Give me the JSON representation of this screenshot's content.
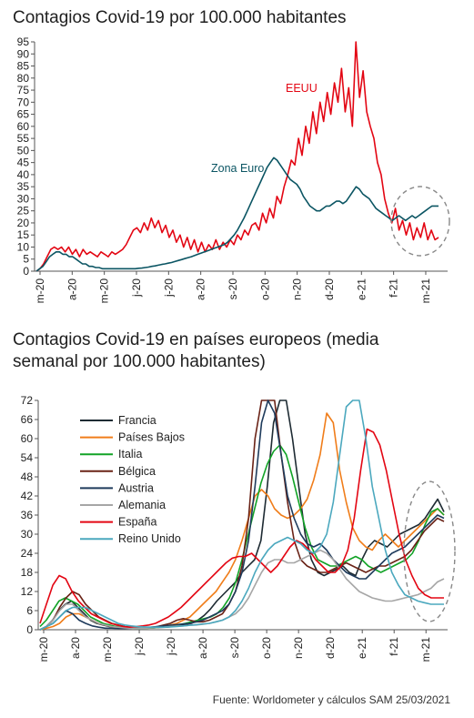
{
  "chart_data": [
    {
      "type": "line",
      "title": "Contagios Covid-19 por 100.000 habitantes",
      "ylim": [
        0,
        95
      ],
      "yticks": [
        0,
        5,
        10,
        15,
        20,
        25,
        30,
        35,
        40,
        45,
        50,
        55,
        60,
        65,
        70,
        75,
        80,
        85,
        90,
        95
      ],
      "xticks": [
        "m-20",
        "a-20",
        "m-20",
        "j-20",
        "j-20",
        "a-20",
        "s-20",
        "o-20",
        "n-20",
        "d-20",
        "e-21",
        "f-21",
        "m-21"
      ],
      "series": [
        {
          "name": "EEUU",
          "color": "#e30613",
          "values": [
            0,
            1,
            3,
            6,
            9,
            10,
            9,
            10,
            8,
            10,
            7,
            9,
            6,
            9,
            7,
            8,
            7,
            6,
            8,
            7,
            6,
            8,
            7,
            8,
            9,
            11,
            14,
            17,
            18,
            16,
            20,
            17,
            22,
            18,
            21,
            16,
            19,
            14,
            17,
            12,
            15,
            10,
            14,
            9,
            13,
            8,
            12,
            8,
            11,
            9,
            13,
            9,
            12,
            10,
            13,
            11,
            15,
            13,
            17,
            15,
            19,
            20,
            17,
            24,
            20,
            26,
            22,
            31,
            28,
            35,
            40,
            46,
            44,
            55,
            48,
            60,
            53,
            66,
            57,
            70,
            62,
            74,
            65,
            78,
            70,
            84,
            66,
            76,
            60,
            95,
            72,
            83,
            66,
            60,
            55,
            45,
            40,
            30,
            24,
            20,
            26,
            17,
            21,
            15,
            20,
            13,
            18,
            14,
            20,
            13,
            17,
            13,
            14
          ]
        },
        {
          "name": "Zona Euro",
          "color": "#0b5563",
          "values": [
            0,
            1,
            2,
            4,
            6,
            7,
            8,
            8,
            7,
            7,
            6,
            6,
            5,
            4,
            3,
            3,
            2,
            2,
            1.5,
            1.5,
            1,
            1,
            1,
            1,
            1,
            1,
            1,
            1,
            1,
            1,
            1,
            1.2,
            1.3,
            1.5,
            1.7,
            2,
            2.2,
            2.5,
            2.8,
            3,
            3.3,
            3.6,
            4,
            4.4,
            4.8,
            5.2,
            5.6,
            6,
            6.5,
            7,
            7.5,
            8,
            8.5,
            9,
            9.5,
            10,
            10.5,
            11,
            12,
            13.5,
            15,
            17,
            19.5,
            22,
            25,
            28,
            31,
            34,
            37,
            40,
            43,
            45,
            47,
            46,
            44,
            42,
            40,
            38,
            37,
            36,
            34,
            31,
            29,
            27,
            26,
            25,
            25,
            26,
            27,
            27,
            28,
            29,
            29,
            28,
            29,
            31,
            33,
            35,
            34,
            32,
            31,
            30,
            28,
            26,
            25,
            24,
            23,
            22,
            21,
            22,
            23,
            22,
            21,
            22,
            23,
            22,
            23,
            24,
            25,
            26,
            27,
            27,
            27
          ]
        }
      ],
      "annotations": [
        "EEUU",
        "Zona Euro"
      ]
    },
    {
      "type": "line",
      "title": "Contagios Covid-19 en países europeos (media semanal por 100.000 habitantes)",
      "ylim": [
        0,
        72
      ],
      "yticks": [
        0,
        6,
        12,
        18,
        24,
        30,
        36,
        42,
        48,
        54,
        60,
        66,
        72
      ],
      "xticks": [
        "m-20",
        "a-20",
        "m-20",
        "j-20",
        "j-20",
        "a-20",
        "s-20",
        "o-20",
        "n-20",
        "d-20",
        "e-21",
        "f-21",
        "m-21"
      ],
      "series": [
        {
          "name": "Francia",
          "color": "#1e2b33",
          "values": [
            0,
            1,
            3,
            6,
            8,
            9,
            7,
            5,
            3,
            2,
            1.5,
            1,
            1,
            1,
            0.8,
            0.7,
            0.6,
            0.6,
            0.6,
            0.7,
            0.8,
            1,
            1.3,
            1.6,
            2,
            3,
            4.5,
            6.5,
            9,
            11,
            13,
            15,
            18,
            20,
            22,
            28,
            45,
            65,
            72,
            72,
            60,
            45,
            30,
            22,
            18,
            17,
            18,
            19,
            20,
            18,
            17,
            22,
            26,
            28,
            27,
            26,
            28,
            30,
            31,
            32,
            33,
            35,
            38,
            41,
            37
          ]
        },
        {
          "name": "Países Bajos",
          "color": "#f07d1a",
          "values": [
            0,
            0.5,
            1,
            2,
            4,
            5,
            5,
            4,
            3,
            2,
            1.5,
            1,
            0.8,
            0.7,
            0.6,
            0.6,
            0.6,
            0.7,
            0.8,
            1,
            1.5,
            2,
            3,
            4,
            6,
            8,
            10,
            12,
            15,
            18,
            22,
            28,
            35,
            42,
            44,
            42,
            38,
            36,
            35,
            36,
            38,
            41,
            47,
            55,
            68,
            65,
            50,
            40,
            32,
            28,
            26,
            25,
            28,
            30,
            28,
            26,
            28,
            30,
            32,
            34,
            36,
            38,
            36
          ]
        },
        {
          "name": "Italia",
          "color": "#12a327",
          "values": [
            1,
            3,
            6,
            9,
            10,
            9,
            8,
            6,
            4,
            3,
            2,
            1.5,
            1,
            0.8,
            0.6,
            0.5,
            0.5,
            0.5,
            0.6,
            0.8,
            1,
            1.3,
            1.6,
            2,
            2.5,
            3,
            3.5,
            4,
            5,
            7,
            10,
            15,
            22,
            30,
            38,
            46,
            52,
            56,
            58,
            55,
            48,
            40,
            32,
            26,
            22,
            21,
            20,
            20,
            21,
            22,
            23,
            22,
            20,
            19,
            18,
            19,
            20,
            21,
            22,
            24,
            28,
            33,
            37,
            38,
            36
          ]
        },
        {
          "name": "Bélgica",
          "color": "#6a2317",
          "values": [
            0,
            1,
            3,
            7,
            10,
            12,
            11,
            8,
            6,
            4,
            3,
            2,
            1.5,
            1,
            0.8,
            0.7,
            0.6,
            0.7,
            1,
            1.5,
            2,
            3,
            3.5,
            3,
            2.5,
            2.5,
            3,
            4,
            5,
            8,
            12,
            20,
            35,
            60,
            72,
            72,
            72,
            55,
            40,
            28,
            22,
            20,
            19,
            18,
            18,
            19,
            20,
            21,
            20,
            19,
            18,
            19,
            20,
            20,
            21,
            22,
            23,
            25,
            28,
            31,
            33,
            35,
            34
          ]
        },
        {
          "name": "Austria",
          "color": "#1f3b5c",
          "values": [
            0,
            1,
            2,
            4,
            6,
            5,
            3,
            2,
            1.2,
            0.8,
            0.5,
            0.5,
            0.4,
            0.4,
            0.5,
            0.6,
            0.7,
            0.8,
            1,
            1.2,
            1.4,
            1.6,
            1.8,
            2,
            2.5,
            3,
            4,
            5,
            6,
            8,
            12,
            18,
            28,
            45,
            65,
            72,
            68,
            55,
            42,
            35,
            30,
            27,
            26,
            27,
            25,
            22,
            20,
            18,
            17,
            16,
            16,
            18,
            20,
            22,
            24,
            25,
            26,
            28,
            30,
            32,
            34,
            36,
            35
          ]
        },
        {
          "name": "Alemania",
          "color": "#a6a6a6",
          "values": [
            0,
            1,
            3,
            6,
            8,
            8,
            6,
            4,
            3,
            2,
            1.5,
            1,
            0.8,
            0.6,
            0.5,
            0.5,
            0.5,
            0.6,
            0.7,
            0.8,
            1,
            1.1,
            1.2,
            1.4,
            1.5,
            1.7,
            2,
            2.5,
            3,
            4,
            5,
            7,
            10,
            14,
            18,
            21,
            22,
            22,
            21,
            21,
            22,
            23,
            24,
            25,
            24,
            22,
            19,
            16,
            14,
            12,
            11,
            10,
            9.5,
            9,
            9,
            9.5,
            10,
            10.5,
            11,
            12,
            13,
            15,
            16
          ]
        },
        {
          "name": "España",
          "color": "#e30613",
          "values": [
            2,
            8,
            14,
            17,
            16,
            12,
            9,
            7,
            5,
            4,
            3,
            2,
            1.5,
            1,
            0.8,
            1,
            1.2,
            1.5,
            2,
            3,
            4,
            5.5,
            7,
            9,
            11,
            13,
            15,
            17,
            19,
            21,
            22.5,
            23,
            23,
            24,
            22,
            20,
            18,
            20,
            23,
            26,
            28,
            27,
            25,
            22,
            20,
            18,
            18,
            20,
            25,
            35,
            50,
            63,
            62,
            58,
            50,
            40,
            30,
            22,
            17,
            13,
            11,
            10,
            10,
            10
          ]
        },
        {
          "name": "Reino Unido",
          "color": "#4ba8be",
          "values": [
            0,
            1,
            2,
            4,
            6,
            7,
            7,
            7,
            6,
            5,
            4,
            3,
            2,
            1.5,
            1.2,
            1,
            0.9,
            0.8,
            0.8,
            0.8,
            0.9,
            1,
            1.2,
            1.4,
            1.6,
            1.8,
            2,
            2.5,
            3,
            4,
            6,
            9,
            13,
            18,
            22,
            25,
            27,
            28,
            29,
            28,
            27,
            25,
            24,
            26,
            30,
            40,
            55,
            70,
            72,
            72,
            60,
            45,
            35,
            25,
            18,
            14,
            11,
            10,
            9,
            8.5,
            8,
            8,
            8
          ]
        }
      ]
    }
  ],
  "source": "Fuente: Worldometer y cálculos SAM 25/03/2021"
}
